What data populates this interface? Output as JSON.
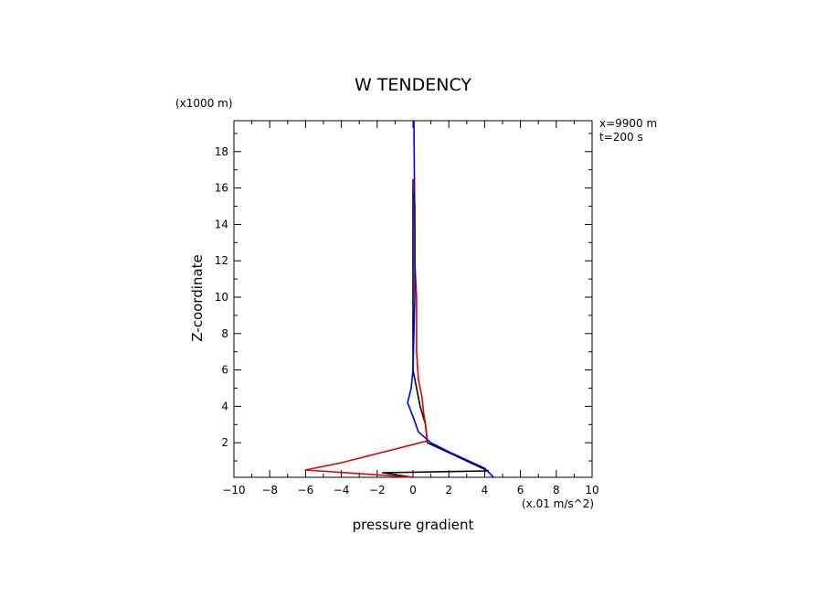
{
  "chart_data": {
    "type": "line",
    "title": "W TENDENCY",
    "xlabel": "pressure gradient",
    "ylabel": "Z-coordinate",
    "x_unit": "(x.01 m/s^2)",
    "y_unit": "(x1000 m)",
    "annotations": [
      "x=9900 m",
      "t=200 s"
    ],
    "xlim": [
      -10,
      10
    ],
    "ylim": [
      0.1,
      19.7
    ],
    "x_ticks": [
      -10,
      -8,
      -6,
      -4,
      -2,
      0,
      2,
      4,
      6,
      8,
      10
    ],
    "y_ticks": [
      2,
      4,
      6,
      8,
      10,
      12,
      14,
      16,
      18
    ],
    "grid": false,
    "series": [
      {
        "color": "#000000",
        "points": [
          [
            0,
            0.1
          ],
          [
            -1.7,
            0.35
          ],
          [
            4.2,
            0.45
          ],
          [
            0.8,
            2.0
          ],
          [
            0.7,
            3.0
          ],
          [
            0.4,
            4.0
          ],
          [
            0.2,
            5.0
          ],
          [
            0.0,
            6.0
          ],
          [
            0.0,
            8.0
          ],
          [
            0.0,
            12.0
          ],
          [
            0.0,
            16.5
          ]
        ]
      },
      {
        "color": "#e00000",
        "points": [
          [
            0,
            0.1
          ],
          [
            -6.0,
            0.5
          ],
          [
            -4,
            0.9
          ],
          [
            -2,
            1.4
          ],
          [
            0.8,
            2.1
          ],
          [
            0.7,
            3.0
          ],
          [
            0.6,
            3.6
          ],
          [
            0.5,
            4.5
          ],
          [
            0.3,
            5.5
          ],
          [
            0.2,
            7
          ],
          [
            0.2,
            10
          ],
          [
            0.1,
            12
          ],
          [
            0.1,
            15
          ],
          [
            0.0,
            16.5
          ]
        ]
      },
      {
        "color": "#0000ee",
        "points": [
          [
            4.5,
            0.1
          ],
          [
            4,
            0.6
          ],
          [
            2,
            1.5
          ],
          [
            1,
            2.0
          ],
          [
            0.3,
            2.6
          ],
          [
            0.05,
            3.3
          ],
          [
            -0.3,
            4.2
          ],
          [
            -0.1,
            5.0
          ],
          [
            0.0,
            6.0
          ],
          [
            0.05,
            8.0
          ],
          [
            0.1,
            10
          ],
          [
            0.1,
            14
          ],
          [
            0.05,
            19.7
          ]
        ]
      }
    ]
  }
}
